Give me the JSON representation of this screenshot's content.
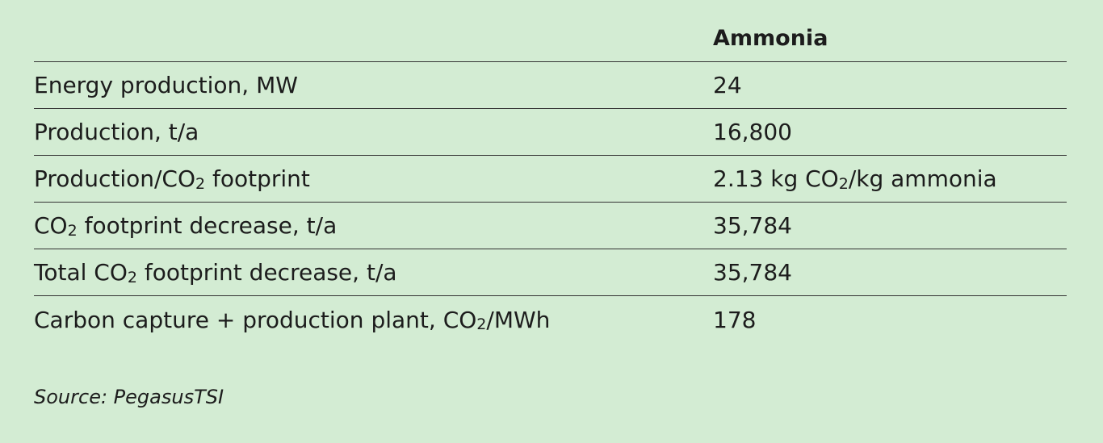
{
  "table": {
    "header": {
      "label": "",
      "value": "Ammonia"
    },
    "rows": [
      {
        "label": [
          "Energy production, MW"
        ],
        "value": [
          "24"
        ]
      },
      {
        "label": [
          "Production, t/a"
        ],
        "value": [
          "16,800"
        ]
      },
      {
        "label": [
          "Production/CO",
          "2",
          " footprint"
        ],
        "value": [
          "2.13 kg CO",
          "2",
          "/kg ammonia"
        ]
      },
      {
        "label": [
          "CO",
          "2",
          " footprint decrease, t/a"
        ],
        "value": [
          "35,784"
        ]
      },
      {
        "label": [
          "Total CO",
          "2",
          " footprint decrease, t/a"
        ],
        "value": [
          "35,784"
        ]
      },
      {
        "label": [
          "Carbon capture + production plant, CO",
          "2",
          "/MWh"
        ],
        "value": [
          "178"
        ]
      }
    ]
  },
  "source": "Source: PegasusTSI"
}
